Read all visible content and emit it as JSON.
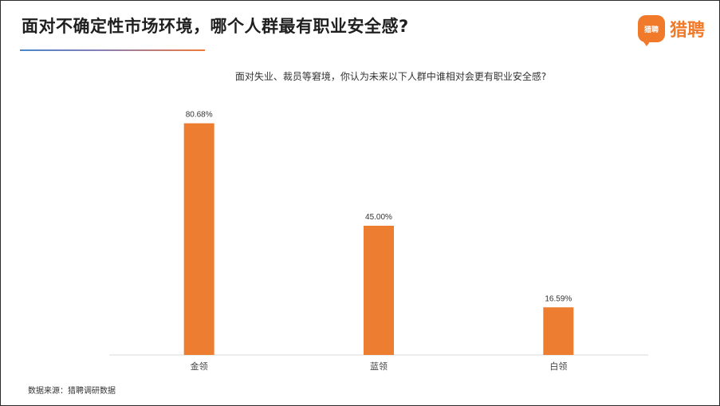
{
  "header": {
    "title": "面对不确定性市场环境，哪个人群最有职业安全感?",
    "brand": {
      "name": "猎聘",
      "icon_text": "猎聘",
      "icon": "speech-bubble-logo-icon",
      "color": "#F07A2A"
    }
  },
  "chart_data": {
    "type": "bar",
    "title": "面对失业、裁员等窘境，你认为未来以下人群中谁相对会更有职业安全感?",
    "categories": [
      "金领",
      "蓝领",
      "白领"
    ],
    "values": [
      80.68,
      45.0,
      16.59
    ],
    "value_labels": [
      "80.68%",
      "45.00%",
      "16.59%"
    ],
    "unit": "%",
    "ylim": [
      0,
      100
    ],
    "grid": false,
    "bar_color": "#ED7D31",
    "xlabel": "",
    "ylabel": ""
  },
  "footer": {
    "source": "数据来源：猎聘调研数据"
  },
  "colors": {
    "accent": "#F07A2A",
    "axis": "#D9D9D9",
    "underline_start": "#4A86C8",
    "underline_end": "#F07A3A"
  }
}
